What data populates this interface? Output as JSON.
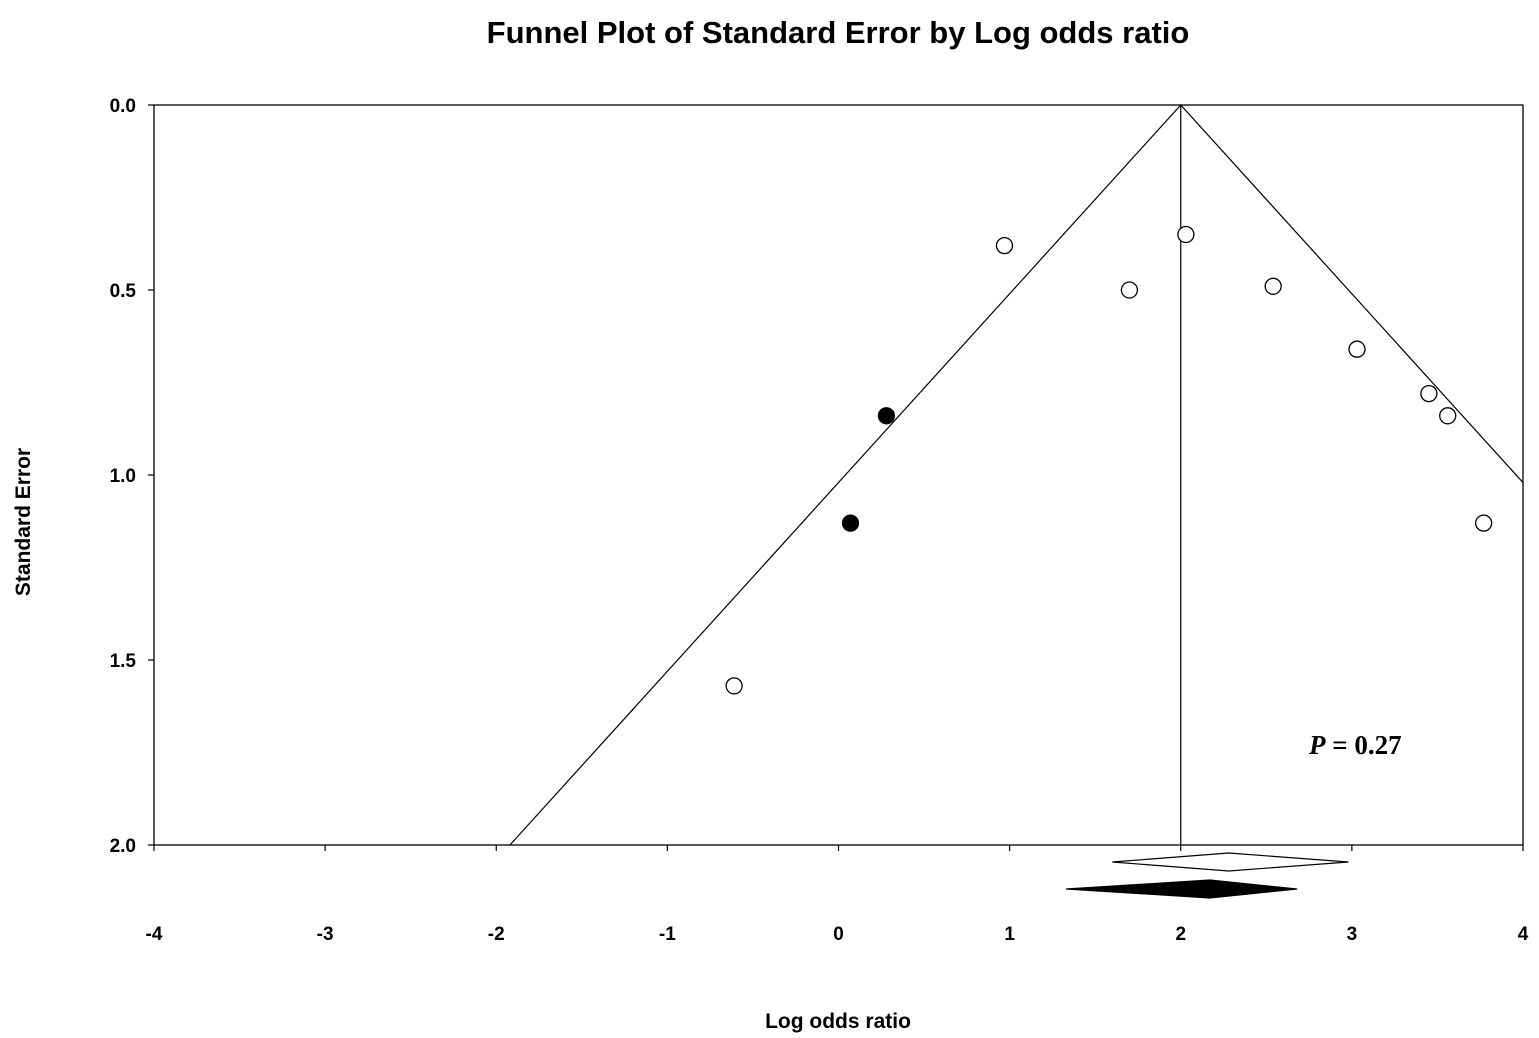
{
  "chart_data": {
    "type": "scatter",
    "title": "Funnel Plot of Standard Error by Log odds ratio",
    "xlabel": "Log odds ratio",
    "ylabel": "Standard Error",
    "xlim": [
      -4,
      4
    ],
    "ylim": [
      0.0,
      2.0
    ],
    "y_inverted": true,
    "x_ticks": [
      "-4",
      "-3",
      "-2",
      "-1",
      "0",
      "1",
      "2",
      "3",
      "4"
    ],
    "y_ticks": [
      "0.0",
      "0.5",
      "1.0",
      "1.5",
      "2.0"
    ],
    "grid": false,
    "legend": "none",
    "pooled_estimate": 2.0,
    "funnel_slope": 1.96,
    "series": [
      {
        "marker": "open-circle",
        "points": [
          {
            "x": 0.97,
            "y": 0.38
          },
          {
            "x": 2.03,
            "y": 0.35
          },
          {
            "x": 1.7,
            "y": 0.5
          },
          {
            "x": 2.54,
            "y": 0.49
          },
          {
            "x": 3.03,
            "y": 0.66
          },
          {
            "x": 3.45,
            "y": 0.78
          },
          {
            "x": 3.56,
            "y": 0.84
          },
          {
            "x": 3.77,
            "y": 1.13
          },
          {
            "x": -0.61,
            "y": 1.57
          }
        ]
      },
      {
        "marker": "filled-circle",
        "points": [
          {
            "x": 0.28,
            "y": 0.84
          },
          {
            "x": 0.07,
            "y": 1.13
          }
        ]
      }
    ],
    "summary_diamonds": [
      {
        "style": "open",
        "low": 1.6,
        "center": 2.28,
        "high": 2.98
      },
      {
        "style": "filled",
        "low": 1.33,
        "center": 2.17,
        "high": 2.68
      }
    ],
    "annotation": {
      "label": "P",
      "value": " = 0.27"
    }
  }
}
